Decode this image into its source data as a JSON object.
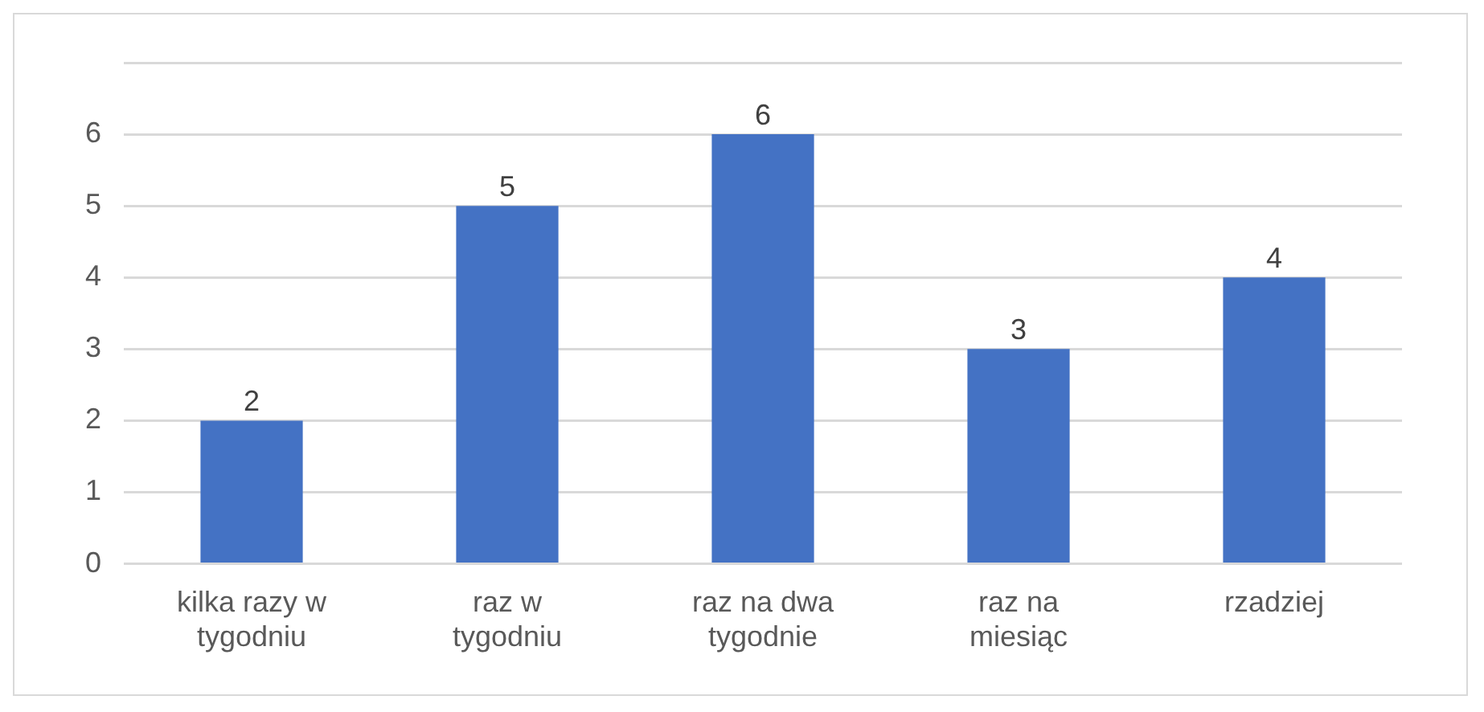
{
  "chart_data": {
    "type": "bar",
    "categories": [
      "kilka razy w tygodniu",
      "raz w tygodniu",
      "raz na dwa tygodnie",
      "raz na miesiąc",
      "rzadziej"
    ],
    "values": [
      2,
      5,
      6,
      3,
      4
    ],
    "color": "#4472c4",
    "ylim": [
      0,
      7
    ],
    "yticks": [
      0,
      1,
      2,
      3,
      4,
      5,
      6,
      {
        "value": 7,
        "label": null
      }
    ],
    "grid": "y",
    "data_labels": true,
    "legend": false
  }
}
